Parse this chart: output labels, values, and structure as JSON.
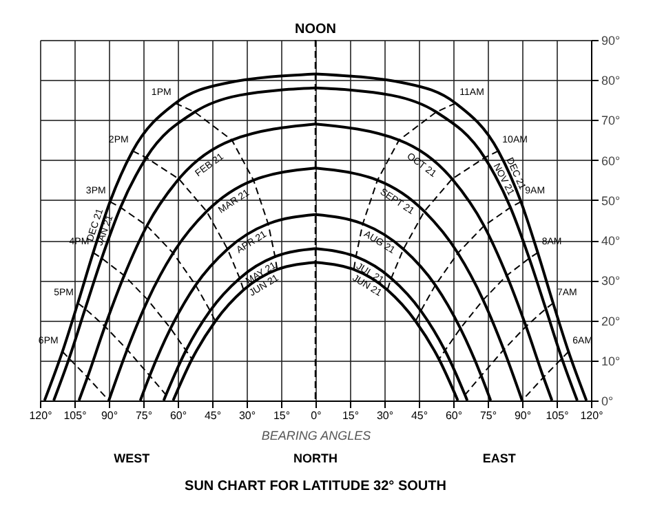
{
  "chart_data": {
    "type": "line",
    "title": "SUN CHART FOR LATITUDE 32° SOUTH",
    "xlabel": "BEARING ANGLES",
    "xlim": [
      -120,
      120
    ],
    "ylim": [
      0,
      90
    ],
    "xticks": [
      {
        "value": -120,
        "label": "120°"
      },
      {
        "value": -105,
        "label": "105°"
      },
      {
        "value": -90,
        "label": "90°"
      },
      {
        "value": -75,
        "label": "75°"
      },
      {
        "value": -60,
        "label": "60°"
      },
      {
        "value": -45,
        "label": "45°"
      },
      {
        "value": -30,
        "label": "30°"
      },
      {
        "value": -15,
        "label": "15°"
      },
      {
        "value": 0,
        "label": "0°"
      },
      {
        "value": 15,
        "label": "15°"
      },
      {
        "value": 30,
        "label": "30°"
      },
      {
        "value": 45,
        "label": "45°"
      },
      {
        "value": 60,
        "label": "60°"
      },
      {
        "value": 75,
        "label": "75°"
      },
      {
        "value": 90,
        "label": "90°"
      },
      {
        "value": 105,
        "label": "105°"
      },
      {
        "value": 120,
        "label": "120°"
      }
    ],
    "yticks": [
      {
        "value": 0,
        "label": "0°"
      },
      {
        "value": 10,
        "label": "10°"
      },
      {
        "value": 20,
        "label": "20°"
      },
      {
        "value": 30,
        "label": "30°"
      },
      {
        "value": 40,
        "label": "40°"
      },
      {
        "value": 50,
        "label": "50°"
      },
      {
        "value": 60,
        "label": "60°"
      },
      {
        "value": 70,
        "label": "70°"
      },
      {
        "value": 80,
        "label": "80°"
      },
      {
        "value": 90,
        "label": "90°"
      }
    ],
    "grid": true,
    "marker": "none",
    "line_style": "solid",
    "ref_lines": [
      {
        "axis": "x",
        "value": 0,
        "label": "NOON",
        "line_style": "dashed",
        "color": "#000000"
      }
    ],
    "annotations": [
      "WEST",
      "NORTH",
      "EAST"
    ],
    "series": [
      {
        "name": "DEC 21",
        "color": "#000000",
        "x": [
          -118,
          -110.2,
          -103.5,
          -96.8,
          -89.5,
          -79.6,
          -61,
          -39.9,
          0
        ],
        "values": [
          0,
          12.2,
          24.3,
          36.9,
          49.6,
          62.3,
          74.2,
          79.1,
          81.5
        ]
      },
      {
        "name": "JAN 21",
        "color": "#000000",
        "x": [
          -114,
          -107.3,
          -100.3,
          -93.1,
          -84.9,
          -73.7,
          -52.6,
          -33,
          0
        ],
        "values": [
          0,
          10.5,
          22.9,
          35.5,
          48.2,
          60.6,
          72.0,
          76.2,
          78.0
        ]
      },
      {
        "name": "FEB 21",
        "color": "#000000",
        "x": [
          -103,
          -99.3,
          -91.7,
          -83.3,
          -73.4,
          -59.5,
          -36.4,
          0
        ],
        "values": [
          0,
          5.8,
          18.5,
          31.2,
          43.6,
          55.3,
          65.0,
          69.0
        ]
      },
      {
        "name": "MAR 21",
        "color": "#000000",
        "x": [
          -90,
          -82,
          -73,
          -62,
          -47.4,
          -27,
          0
        ],
        "values": [
          0,
          12.7,
          25.1,
          36.8,
          47.2,
          55.0,
          58.0
        ]
      },
      {
        "name": "APR 21",
        "color": "#000000",
        "x": [
          -76.3,
          -72.2,
          -63.1,
          -52.2,
          -38.3,
          -20.6,
          0
        ],
        "values": [
          0,
          6.2,
          18.0,
          28.8,
          37.8,
          44.1,
          46.4
        ]
      },
      {
        "name": "MAY 21",
        "color": "#000000",
        "x": [
          -66.1,
          -65.1,
          -56.4,
          -45.9,
          -33.0,
          -17.6,
          0
        ],
        "values": [
          0,
          1.4,
          12.5,
          22.4,
          30.5,
          35.9,
          37.9
        ]
      },
      {
        "name": "JUN 21",
        "color": "#000000",
        "x": [
          -62,
          -53.8,
          -43.6,
          -31.3,
          -16.7,
          0
        ],
        "values": [
          0,
          10.3,
          19.8,
          27.6,
          32.7,
          34.5
        ]
      },
      {
        "name": "DEC 21",
        "color": "#000000",
        "x": [
          0,
          39.9,
          61,
          79.6,
          89.5,
          96.8,
          103.5,
          110.2,
          118
        ],
        "values": [
          81.5,
          79.1,
          74.2,
          62.3,
          49.6,
          36.9,
          24.3,
          12.2,
          0
        ]
      },
      {
        "name": "NOV 21",
        "color": "#000000",
        "x": [
          0,
          33,
          52.6,
          73.7,
          84.9,
          93.1,
          100.3,
          107.3,
          114
        ],
        "values": [
          78.0,
          76.2,
          72.0,
          60.6,
          48.2,
          35.5,
          22.9,
          10.5,
          0
        ]
      },
      {
        "name": "OCT 21",
        "color": "#000000",
        "x": [
          0,
          36.4,
          59.5,
          73.4,
          83.3,
          91.7,
          99.3,
          103
        ],
        "values": [
          69.0,
          65.0,
          55.3,
          43.6,
          31.2,
          18.5,
          5.8,
          0
        ]
      },
      {
        "name": "SEPT 21",
        "color": "#000000",
        "x": [
          0,
          27,
          47.4,
          62,
          73,
          82,
          90
        ],
        "values": [
          58.0,
          55.0,
          47.2,
          36.8,
          25.1,
          12.7,
          0
        ]
      },
      {
        "name": "AUG 21",
        "color": "#000000",
        "x": [
          0,
          20.6,
          38.3,
          52.2,
          63.1,
          72.2,
          76.3
        ],
        "values": [
          46.4,
          44.1,
          37.8,
          28.8,
          18.0,
          6.2,
          0
        ]
      },
      {
        "name": "JUL 21",
        "color": "#000000",
        "x": [
          0,
          17.6,
          33.0,
          45.9,
          56.4,
          65.1,
          66.1
        ],
        "values": [
          37.9,
          35.9,
          30.5,
          22.4,
          12.5,
          1.4,
          0
        ]
      },
      {
        "name": "JUN 21",
        "color": "#000000",
        "x": [
          0,
          16.7,
          31.3,
          43.6,
          53.8,
          62
        ],
        "values": [
          34.5,
          32.7,
          27.6,
          19.8,
          10.3,
          0
        ]
      },
      {
        "name": "1PM",
        "color": "#000000",
        "line_style": "dashed",
        "x": [
          -61,
          -52.6,
          -36.4,
          -27,
          -20.6,
          -17.6,
          -16.7
        ],
        "values": [
          74.2,
          72.0,
          65.0,
          55.0,
          44.1,
          35.9,
          32.7
        ]
      },
      {
        "name": "2PM",
        "color": "#000000",
        "line_style": "dashed",
        "x": [
          -79.6,
          -73.7,
          -59.5,
          -47.4,
          -38.3,
          -33.0,
          -31.3
        ],
        "values": [
          62.3,
          60.6,
          55.3,
          47.2,
          37.8,
          30.5,
          27.6
        ]
      },
      {
        "name": "3PM",
        "color": "#000000",
        "line_style": "dashed",
        "x": [
          -89.5,
          -84.9,
          -73.4,
          -62,
          -52.2,
          -45.9,
          -43.6
        ],
        "values": [
          49.6,
          48.2,
          43.6,
          36.8,
          28.8,
          22.4,
          19.8
        ]
      },
      {
        "name": "4PM",
        "color": "#000000",
        "line_style": "dashed",
        "x": [
          -96.8,
          -93.1,
          -83.3,
          -73,
          -63.1,
          -56.4,
          -53.8
        ],
        "values": [
          36.9,
          35.5,
          31.2,
          25.1,
          18.0,
          12.5,
          10.3
        ]
      },
      {
        "name": "5PM",
        "color": "#000000",
        "line_style": "dashed",
        "x": [
          -103.5,
          -100.3,
          -91.7,
          -82,
          -72.2,
          -65.1
        ],
        "values": [
          24.3,
          22.9,
          18.5,
          12.7,
          6.2,
          1.4
        ]
      },
      {
        "name": "6PM",
        "color": "#000000",
        "line_style": "dashed",
        "x": [
          -110.2,
          -107.3,
          -99.3,
          -90
        ],
        "values": [
          12.2,
          10.5,
          5.8,
          0
        ]
      },
      {
        "name": "11AM",
        "color": "#000000",
        "line_style": "dashed",
        "x": [
          61,
          52.6,
          36.4,
          27,
          20.6,
          17.6,
          16.7
        ],
        "values": [
          74.2,
          72.0,
          65.0,
          55.0,
          44.1,
          35.9,
          32.7
        ]
      },
      {
        "name": "10AM",
        "color": "#000000",
        "line_style": "dashed",
        "x": [
          79.6,
          73.7,
          59.5,
          47.4,
          38.3,
          33.0,
          31.3
        ],
        "values": [
          62.3,
          60.6,
          55.3,
          47.2,
          37.8,
          30.5,
          27.6
        ]
      },
      {
        "name": "9AM",
        "color": "#000000",
        "line_style": "dashed",
        "x": [
          89.5,
          84.9,
          73.4,
          62,
          52.2,
          45.9,
          43.6
        ],
        "values": [
          49.6,
          48.2,
          43.6,
          36.8,
          28.8,
          22.4,
          19.8
        ]
      },
      {
        "name": "8AM",
        "color": "#000000",
        "line_style": "dashed",
        "x": [
          96.8,
          93.1,
          83.3,
          73,
          63.1,
          56.4,
          53.8
        ],
        "values": [
          36.9,
          35.5,
          31.2,
          25.1,
          18.0,
          12.5,
          10.3
        ]
      },
      {
        "name": "7AM",
        "color": "#000000",
        "line_style": "dashed",
        "x": [
          103.5,
          100.3,
          91.7,
          82,
          72.2,
          65.1
        ],
        "values": [
          24.3,
          22.9,
          18.5,
          12.7,
          6.2,
          1.4
        ]
      },
      {
        "name": "6AM",
        "color": "#000000",
        "line_style": "dashed",
        "x": [
          110.2,
          107.3,
          99.3,
          90
        ],
        "values": [
          12.2,
          10.5,
          5.8,
          0
        ]
      }
    ]
  }
}
